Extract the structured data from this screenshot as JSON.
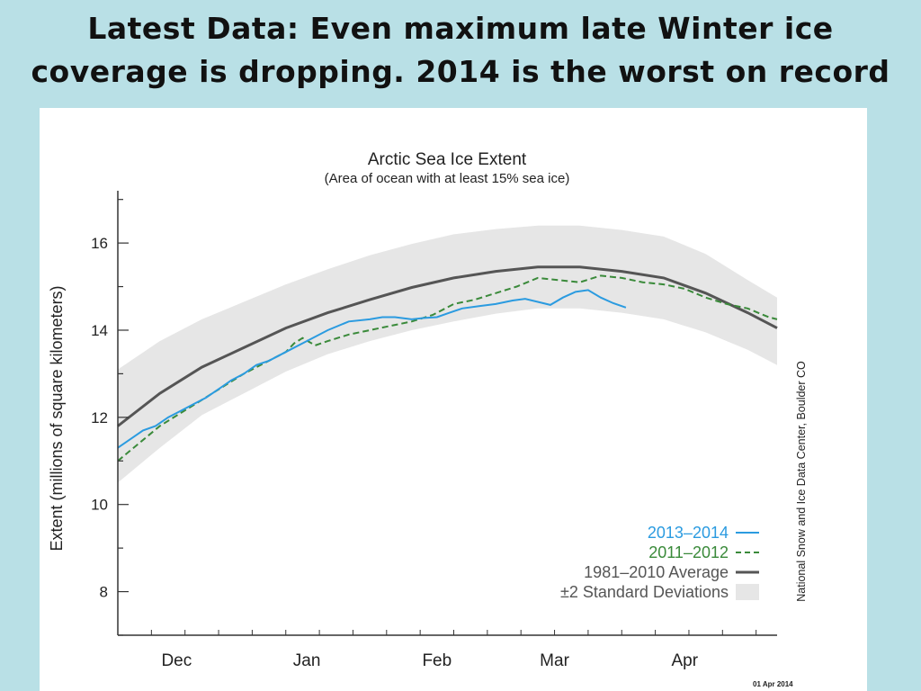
{
  "slide": {
    "title_line1": "Latest Data: Even maximum late Winter ice",
    "title_line2": "coverage is dropping. 2014 is the worst on record"
  },
  "colors": {
    "background": "#b9e0e6",
    "series_2013_2014": "#2b9be0",
    "series_2011_2012": "#3a8a3a",
    "average": "#555555",
    "std_band": "#e6e6e6"
  },
  "chart_data": {
    "type": "line",
    "title": "Arctic Sea Ice Extent",
    "subtitle": "(Area of ocean with at least 15% sea ice)",
    "ylabel": "Extent (millions of square kilometers)",
    "xlabel": "",
    "y_ticks": [
      8,
      10,
      12,
      14,
      16
    ],
    "ylim": [
      7,
      17.2
    ],
    "xlim": [
      0,
      157
    ],
    "x_tick_labels": [
      {
        "label": "Dec",
        "x": 14
      },
      {
        "label": "Jan",
        "x": 45
      },
      {
        "label": "Feb",
        "x": 76
      },
      {
        "label": "Mar",
        "x": 104
      },
      {
        "label": "Apr",
        "x": 135
      }
    ],
    "grid": false,
    "legend_position": "bottom-right",
    "credit": "National Snow and Ice Data Center, Boulder CO",
    "date_stamp": "01 Apr 2014",
    "series": [
      {
        "name": "1981–2010 Average",
        "style": "solid",
        "x": [
          0,
          10,
          20,
          30,
          40,
          50,
          60,
          70,
          80,
          90,
          100,
          110,
          120,
          130,
          140,
          150,
          157
        ],
        "y": [
          11.8,
          12.55,
          13.15,
          13.6,
          14.05,
          14.4,
          14.7,
          14.98,
          15.2,
          15.35,
          15.45,
          15.45,
          15.35,
          15.2,
          14.85,
          14.4,
          14.05
        ]
      },
      {
        "name": "±2 Standard Deviations",
        "style": "band",
        "x": [
          0,
          10,
          20,
          30,
          40,
          50,
          60,
          70,
          80,
          90,
          100,
          110,
          120,
          130,
          140,
          150,
          157
        ],
        "upper": [
          13.1,
          13.75,
          14.25,
          14.65,
          15.05,
          15.4,
          15.72,
          15.98,
          16.2,
          16.32,
          16.4,
          16.4,
          16.3,
          16.15,
          15.75,
          15.15,
          14.75
        ],
        "lower": [
          10.5,
          11.3,
          12.05,
          12.55,
          13.05,
          13.45,
          13.75,
          14.0,
          14.2,
          14.38,
          14.5,
          14.5,
          14.4,
          14.25,
          13.95,
          13.55,
          13.2
        ]
      },
      {
        "name": "2013–2014",
        "style": "solid",
        "x": [
          0,
          3,
          6,
          9,
          12,
          15,
          18,
          21,
          24,
          27,
          30,
          33,
          36,
          40,
          45,
          50,
          55,
          60,
          63,
          66,
          70,
          73,
          76,
          79,
          82,
          86,
          90,
          94,
          97,
          100,
          103,
          106,
          109,
          112,
          115,
          118,
          121
        ],
        "y": [
          11.3,
          11.5,
          11.7,
          11.8,
          12.0,
          12.15,
          12.3,
          12.45,
          12.65,
          12.85,
          13.0,
          13.2,
          13.3,
          13.5,
          13.75,
          14.0,
          14.2,
          14.25,
          14.3,
          14.3,
          14.25,
          14.28,
          14.3,
          14.4,
          14.5,
          14.55,
          14.6,
          14.68,
          14.72,
          14.65,
          14.58,
          14.75,
          14.88,
          14.92,
          14.75,
          14.62,
          14.52
        ]
      },
      {
        "name": "2011–2012",
        "style": "dashed",
        "x": [
          0,
          5,
          10,
          15,
          20,
          25,
          30,
          35,
          40,
          42,
          44,
          47,
          50,
          55,
          60,
          65,
          70,
          75,
          80,
          85,
          90,
          95,
          100,
          105,
          110,
          115,
          120,
          125,
          130,
          135,
          140,
          145,
          150,
          155,
          157
        ],
        "y": [
          11.0,
          11.4,
          11.8,
          12.1,
          12.4,
          12.7,
          13.0,
          13.25,
          13.5,
          13.7,
          13.82,
          13.65,
          13.75,
          13.9,
          14.0,
          14.1,
          14.2,
          14.35,
          14.6,
          14.7,
          14.85,
          15.0,
          15.2,
          15.15,
          15.1,
          15.25,
          15.2,
          15.1,
          15.05,
          14.95,
          14.75,
          14.6,
          14.5,
          14.3,
          14.25
        ]
      }
    ]
  },
  "legend": {
    "items": [
      {
        "label": "2013–2014",
        "color": "#2b9be0",
        "style": "solid"
      },
      {
        "label": "2011–2012",
        "color": "#3a8a3a",
        "style": "dashed"
      },
      {
        "label": "1981–2010 Average",
        "color": "#555555",
        "style": "solid"
      },
      {
        "label": "±2 Standard Deviations",
        "color": "#e6e6e6",
        "style": "band"
      }
    ]
  }
}
